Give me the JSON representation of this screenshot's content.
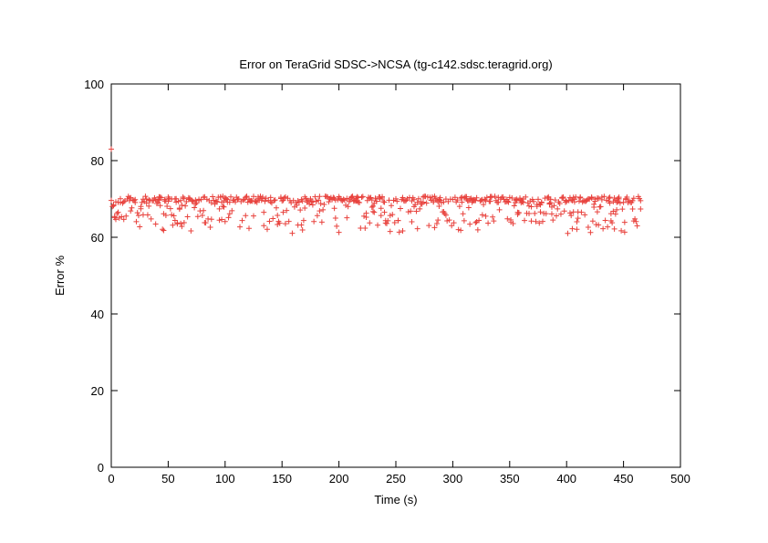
{
  "chart_data": {
    "type": "scatter",
    "title": "Error on TeraGrid SDSC->NCSA (tg-c142.sdsc.teragrid.org)",
    "xlabel": "Time (s)",
    "ylabel": "Error %",
    "xlim": [
      0,
      500
    ],
    "ylim": [
      0,
      100
    ],
    "xticks": [
      "0",
      "50",
      "100",
      "150",
      "200",
      "250",
      "300",
      "350",
      "400",
      "450",
      "500"
    ],
    "yticks": [
      "0",
      "20",
      "40",
      "60",
      "80",
      "100"
    ],
    "grid": false,
    "legend": "none",
    "marker": "plus",
    "color": "#e8413c",
    "x_range": [
      0,
      465
    ],
    "y_band": [
      61,
      71
    ],
    "outlier": {
      "x": 0,
      "y": 83
    }
  }
}
